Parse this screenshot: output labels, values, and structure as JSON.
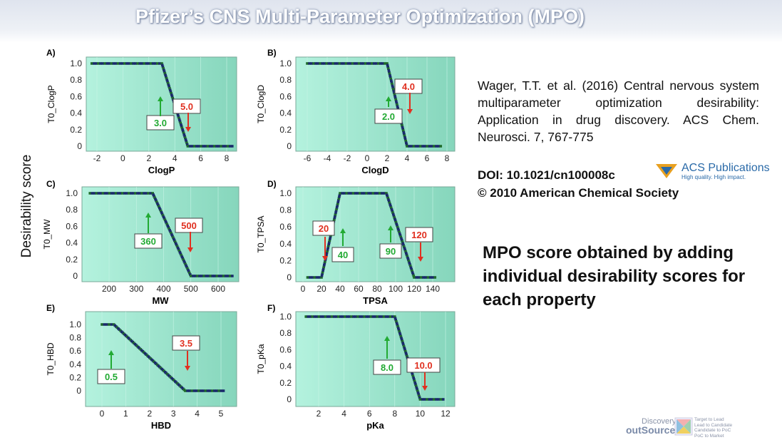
{
  "title": "Pfizer’s CNS Multi-Parameter Optimization (MPO)",
  "shared_ylabel": "Desirability score",
  "citation": "Wager, T.T. et al. (2016) Central nervous system multiparameter optimization desirability: Application in drug discovery. ACS Chem. Neurosci. 7, 767-775",
  "doi": "DOI: 10.1021/cn100008c",
  "copyright": "© 2010 American Chemical Society",
  "acs_logo": {
    "name": "ACS Publications",
    "tagline": "High quality. High impact."
  },
  "mpo_note": "MPO score obtained by adding individual desirability scores for each property",
  "footer_logo": {
    "brand_top": "Discovery™",
    "brand": "outSource",
    "tags": [
      "Target to Lead",
      "Lead to Candidate",
      "Candidate to PoC",
      "PoC to Market"
    ]
  },
  "colors": {
    "plot_bg": "#a8ecd6",
    "points": "#1a2a6a",
    "up_arrow": "#22aa33",
    "down_arrow": "#e03020"
  },
  "chart_data": [
    {
      "panel": "A)",
      "type": "scatter",
      "xlabel": "ClogP",
      "ylabel": "T0_ClogP",
      "xticks": [
        -2,
        0,
        2,
        4,
        6,
        8
      ],
      "yticks": [
        0,
        0.2,
        0.4,
        0.6,
        0.8,
        1.0
      ],
      "curve": [
        [
          -2.4,
          1
        ],
        [
          3,
          1
        ],
        [
          5,
          0
        ],
        [
          8.6,
          0
        ]
      ],
      "annotations": [
        {
          "label": "3.0",
          "dir": "up"
        },
        {
          "label": "5.0",
          "dir": "down"
        }
      ]
    },
    {
      "panel": "B)",
      "type": "scatter",
      "xlabel": "ClogD",
      "ylabel": "T0_ClogD",
      "xticks": [
        -6,
        -4,
        -2,
        0,
        2,
        4,
        6,
        8
      ],
      "yticks": [
        0,
        0.2,
        0.4,
        0.6,
        0.8,
        1.0
      ],
      "curve": [
        [
          -6,
          1
        ],
        [
          2,
          1
        ],
        [
          4,
          0
        ],
        [
          7.6,
          0
        ]
      ],
      "annotations": [
        {
          "label": "2.0",
          "dir": "up"
        },
        {
          "label": "4.0",
          "dir": "down"
        }
      ]
    },
    {
      "panel": "C)",
      "type": "scatter",
      "xlabel": "MW",
      "ylabel": "T0_MW",
      "xticks": [
        200,
        300,
        400,
        500,
        600
      ],
      "yticks": [
        0,
        0.2,
        0.4,
        0.6,
        0.8,
        1.0
      ],
      "curve": [
        [
          130,
          1
        ],
        [
          360,
          1
        ],
        [
          500,
          0
        ],
        [
          660,
          0
        ]
      ],
      "annotations": [
        {
          "label": "360",
          "dir": "up"
        },
        {
          "label": "500",
          "dir": "down"
        }
      ]
    },
    {
      "panel": "D)",
      "type": "scatter",
      "xlabel": "TPSA",
      "ylabel": "T0_TPSA",
      "xticks": [
        0,
        20,
        40,
        60,
        80,
        100,
        120,
        140
      ],
      "yticks": [
        0,
        0.2,
        0.4,
        0.6,
        0.8,
        1.0
      ],
      "curve": [
        [
          5,
          0
        ],
        [
          20,
          0
        ],
        [
          40,
          1
        ],
        [
          90,
          1
        ],
        [
          120,
          0
        ],
        [
          145,
          0
        ]
      ],
      "annotations": [
        {
          "label": "20",
          "dir": "down"
        },
        {
          "label": "40",
          "dir": "up"
        },
        {
          "label": "90",
          "dir": "up"
        },
        {
          "label": "120",
          "dir": "down"
        }
      ]
    },
    {
      "panel": "E)",
      "type": "scatter",
      "xlabel": "HBD",
      "ylabel": "T0_HBD",
      "xticks": [
        0,
        1,
        2,
        3,
        4,
        5
      ],
      "yticks": [
        0,
        0.2,
        0.4,
        0.6,
        0.8,
        1.0
      ],
      "curve": [
        [
          0,
          1
        ],
        [
          0.5,
          1
        ],
        [
          3.5,
          0
        ],
        [
          5.2,
          0
        ]
      ],
      "annotations": [
        {
          "label": "0.5",
          "dir": "up"
        },
        {
          "label": "3.5",
          "dir": "down"
        }
      ]
    },
    {
      "panel": "F)",
      "type": "scatter",
      "xlabel": "pKa",
      "ylabel": "T0_pKa",
      "xticks": [
        2,
        4,
        6,
        8,
        10,
        12
      ],
      "yticks": [
        0,
        0.2,
        0.4,
        0.6,
        0.8,
        1.0
      ],
      "curve": [
        [
          1,
          1
        ],
        [
          8,
          1
        ],
        [
          10,
          0
        ],
        [
          12,
          0
        ]
      ],
      "annotations": [
        {
          "label": "8.0",
          "dir": "up"
        },
        {
          "label": "10.0",
          "dir": "down"
        }
      ]
    }
  ]
}
